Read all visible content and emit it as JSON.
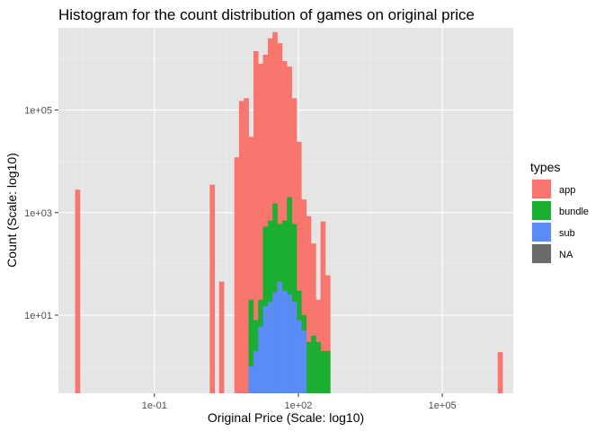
{
  "chart_data": {
    "type": "bar",
    "title": "Histogram for the count distribution of games on original price",
    "xlabel": "Original Price (Scale: log10)",
    "ylabel": "Count (Scale: log10)",
    "x_scale": "log10",
    "y_scale": "log10",
    "xlim": [
      0.001,
      3000000
    ],
    "ylim": [
      0.3,
      4000000
    ],
    "bin_log10_width": 0.1,
    "x_ticks": [
      {
        "value": 0.1,
        "label": "1e-01"
      },
      {
        "value": 100,
        "label": "1e+02"
      },
      {
        "value": 100000,
        "label": "1e+05"
      }
    ],
    "y_ticks": [
      {
        "value": 10,
        "label": "1e+01"
      },
      {
        "value": 1000,
        "label": "1e+03"
      },
      {
        "value": 100000,
        "label": "1e+05"
      }
    ],
    "grid": true,
    "background": "#e5e5e5",
    "legend": {
      "title": "types",
      "position": "right",
      "entries": [
        {
          "label": "app",
          "color": "#f8766d"
        },
        {
          "label": "bundle",
          "color": "#1aaf30"
        },
        {
          "label": "sub",
          "color": "#5b8cf6"
        },
        {
          "label": "NA",
          "color": "#6b6b6b"
        }
      ]
    },
    "series": [
      {
        "name": "app",
        "color": "#f8766d",
        "bins": [
          {
            "x": 0.0025,
            "count": 2800
          },
          {
            "x": 1.6,
            "count": 3500
          },
          {
            "x": 2.5,
            "count": 45
          },
          {
            "x": 5.2,
            "count": 12000
          },
          {
            "x": 6.5,
            "count": 150000
          },
          {
            "x": 8.2,
            "count": 170000
          },
          {
            "x": 10.3,
            "count": 30000
          },
          {
            "x": 13,
            "count": 1400000
          },
          {
            "x": 16.3,
            "count": 800000
          },
          {
            "x": 20.5,
            "count": 1200000
          },
          {
            "x": 25.9,
            "count": 2500000
          },
          {
            "x": 32.5,
            "count": 3300000
          },
          {
            "x": 41,
            "count": 2000000
          },
          {
            "x": 51.5,
            "count": 900000
          },
          {
            "x": 65,
            "count": 700000
          },
          {
            "x": 82,
            "count": 170000
          },
          {
            "x": 103,
            "count": 24000
          },
          {
            "x": 130,
            "count": 1800
          },
          {
            "x": 163,
            "count": 850
          },
          {
            "x": 206,
            "count": 250
          },
          {
            "x": 260,
            "count": 20
          },
          {
            "x": 325,
            "count": 670
          },
          {
            "x": 410,
            "count": 60
          },
          {
            "x": 1600000,
            "count": 1.9
          }
        ]
      },
      {
        "name": "bundle",
        "color": "#1aaf30",
        "bins": [
          {
            "x": 10.3,
            "count": 20
          },
          {
            "x": 13,
            "count": 8
          },
          {
            "x": 16.3,
            "count": 20
          },
          {
            "x": 20.5,
            "count": 530
          },
          {
            "x": 25.9,
            "count": 700
          },
          {
            "x": 32.5,
            "count": 1500
          },
          {
            "x": 41,
            "count": 600
          },
          {
            "x": 51.5,
            "count": 700
          },
          {
            "x": 65,
            "count": 2000
          },
          {
            "x": 82,
            "count": 600
          },
          {
            "x": 103,
            "count": 30
          },
          {
            "x": 130,
            "count": 10
          },
          {
            "x": 163,
            "count": 3
          },
          {
            "x": 206,
            "count": 4
          },
          {
            "x": 260,
            "count": 3
          },
          {
            "x": 325,
            "count": 2
          },
          {
            "x": 410,
            "count": 2
          }
        ]
      },
      {
        "name": "sub",
        "color": "#5b8cf6",
        "bins": [
          {
            "x": 10.3,
            "count": 1
          },
          {
            "x": 13,
            "count": 2
          },
          {
            "x": 16.3,
            "count": 6
          },
          {
            "x": 20.5,
            "count": 15
          },
          {
            "x": 25.9,
            "count": 18
          },
          {
            "x": 32.5,
            "count": 28
          },
          {
            "x": 41,
            "count": 45
          },
          {
            "x": 51.5,
            "count": 30
          },
          {
            "x": 65,
            "count": 25
          },
          {
            "x": 82,
            "count": 18
          },
          {
            "x": 103,
            "count": 8
          },
          {
            "x": 130,
            "count": 5
          }
        ]
      }
    ]
  }
}
